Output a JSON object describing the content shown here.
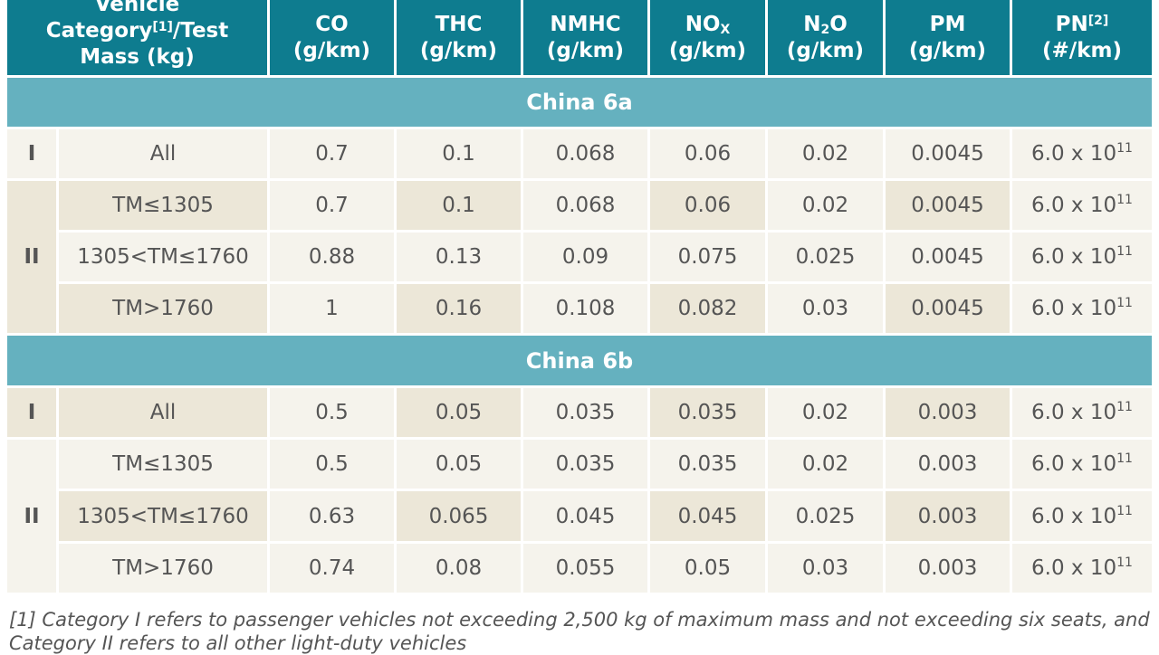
{
  "header": {
    "category_line1": "Vehicle",
    "category_line2a": "Category",
    "category_sup": "[1]",
    "category_line2b": "/Test",
    "category_line3": "Mass (kg)",
    "co": "CO",
    "thc": "THC",
    "nmhc": "NMHC",
    "nox_base": "NO",
    "nox_sub": "X",
    "n2o_n": "N",
    "n2o_sub": "2",
    "n2o_o": "O",
    "pm": "PM",
    "pn": "PN",
    "pn_sup": "[2]",
    "unit_gkm": "(g/km)",
    "unit_pn": "(#/km)"
  },
  "sections": [
    {
      "title": "China 6a",
      "groups": [
        {
          "category": "I",
          "rows": [
            {
              "mass": "All",
              "co": "0.7",
              "thc": "0.1",
              "nmhc": "0.068",
              "nox": "0.06",
              "n2o": "0.02",
              "pm": "0.0045",
              "pn_base": "6.0 x 10",
              "pn_exp": "11"
            }
          ]
        },
        {
          "category": "II",
          "rows": [
            {
              "mass": "TM≤1305",
              "co": "0.7",
              "thc": "0.1",
              "nmhc": "0.068",
              "nox": "0.06",
              "n2o": "0.02",
              "pm": "0.0045",
              "pn_base": "6.0 x 10",
              "pn_exp": "11"
            },
            {
              "mass": "1305<TM≤1760",
              "co": "0.88",
              "thc": "0.13",
              "nmhc": "0.09",
              "nox": "0.075",
              "n2o": "0.025",
              "pm": "0.0045",
              "pn_base": "6.0 x 10",
              "pn_exp": "11"
            },
            {
              "mass": "TM>1760",
              "co": "1",
              "thc": "0.16",
              "nmhc": "0.108",
              "nox": "0.082",
              "n2o": "0.03",
              "pm": "0.0045",
              "pn_base": "6.0 x 10",
              "pn_exp": "11"
            }
          ]
        }
      ]
    },
    {
      "title": "China 6b",
      "groups": [
        {
          "category": "I",
          "rows": [
            {
              "mass": "All",
              "co": "0.5",
              "thc": "0.05",
              "nmhc": "0.035",
              "nox": "0.035",
              "n2o": "0.02",
              "pm": "0.003",
              "pn_base": "6.0 x 10",
              "pn_exp": "11"
            }
          ]
        },
        {
          "category": "II",
          "rows": [
            {
              "mass": "TM≤1305",
              "co": "0.5",
              "thc": "0.05",
              "nmhc": "0.035",
              "nox": "0.035",
              "n2o": "0.02",
              "pm": "0.003",
              "pn_base": "6.0 x 10",
              "pn_exp": "11"
            },
            {
              "mass": "1305<TM≤1760",
              "co": "0.63",
              "thc": "0.065",
              "nmhc": "0.045",
              "nox": "0.045",
              "n2o": "0.025",
              "pm": "0.003",
              "pn_base": "6.0 x 10",
              "pn_exp": "11"
            },
            {
              "mass": "TM>1760",
              "co": "0.74",
              "thc": "0.08",
              "nmhc": "0.055",
              "nox": "0.05",
              "n2o": "0.03",
              "pm": "0.003",
              "pn_base": "6.0 x 10",
              "pn_exp": "11"
            }
          ]
        }
      ]
    }
  ],
  "footnote": "[1] Category I refers to passenger vehicles not exceeding 2,500 kg of maximum mass and not exceeding six seats, and Category II refers to all other light-duty vehicles"
}
